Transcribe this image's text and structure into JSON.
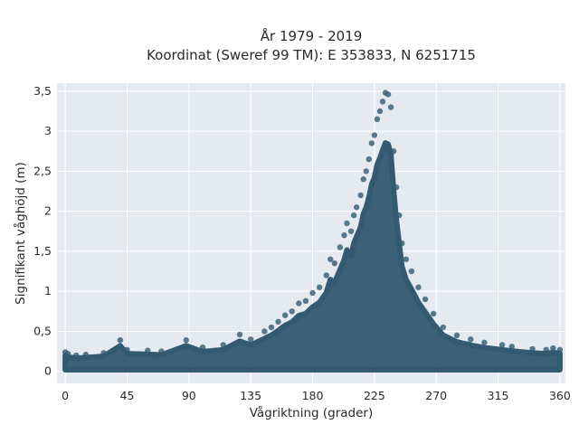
{
  "chart_data": {
    "type": "scatter",
    "title": "År 1979 - 2019",
    "subtitle": "Koordinat (Sweref 99 TM): E 353833, N 6251715",
    "xlabel": "Vågriktning (grader)",
    "ylabel": "Signifikant våghöjd (m)",
    "xlim": [
      -6,
      364
    ],
    "ylim": [
      -0.15,
      3.6
    ],
    "xticks": [
      0,
      45,
      90,
      135,
      180,
      225,
      270,
      315,
      360
    ],
    "xtick_labels": [
      "0",
      "45",
      "90",
      "135",
      "180",
      "225",
      "270",
      "315",
      "360"
    ],
    "yticks": [
      0,
      0.5,
      1,
      1.5,
      2,
      2.5,
      3,
      3.5
    ],
    "ytick_labels": [
      "0",
      "0,5",
      "1",
      "1,5",
      "2",
      "2,5",
      "3",
      "3,5"
    ],
    "grid": true,
    "marker_color": "#335a70",
    "background": "#e5e9f0",
    "points": [
      [
        0,
        0.24
      ],
      [
        2,
        0.22
      ],
      [
        8,
        0.2
      ],
      [
        15,
        0.21
      ],
      [
        28,
        0.23
      ],
      [
        40,
        0.39
      ],
      [
        45,
        0.27
      ],
      [
        60,
        0.26
      ],
      [
        70,
        0.25
      ],
      [
        88,
        0.39
      ],
      [
        100,
        0.3
      ],
      [
        115,
        0.33
      ],
      [
        127,
        0.46
      ],
      [
        135,
        0.4
      ],
      [
        145,
        0.5
      ],
      [
        150,
        0.55
      ],
      [
        155,
        0.62
      ],
      [
        160,
        0.7
      ],
      [
        165,
        0.75
      ],
      [
        170,
        0.85
      ],
      [
        175,
        0.88
      ],
      [
        180,
        0.98
      ],
      [
        185,
        1.05
      ],
      [
        190,
        1.2
      ],
      [
        193,
        1.4
      ],
      [
        196,
        1.35
      ],
      [
        200,
        1.55
      ],
      [
        203,
        1.7
      ],
      [
        205,
        1.85
      ],
      [
        208,
        1.75
      ],
      [
        210,
        1.95
      ],
      [
        212,
        2.05
      ],
      [
        215,
        2.2
      ],
      [
        217,
        2.4
      ],
      [
        219,
        2.5
      ],
      [
        221,
        2.65
      ],
      [
        223,
        2.85
      ],
      [
        225,
        2.95
      ],
      [
        227,
        3.15
      ],
      [
        229,
        3.25
      ],
      [
        231,
        3.37
      ],
      [
        233,
        3.48
      ],
      [
        235,
        3.46
      ],
      [
        237,
        3.3
      ],
      [
        239,
        2.75
      ],
      [
        241,
        2.3
      ],
      [
        243,
        1.95
      ],
      [
        245,
        1.6
      ],
      [
        248,
        1.4
      ],
      [
        252,
        1.25
      ],
      [
        257,
        1.05
      ],
      [
        262,
        0.9
      ],
      [
        268,
        0.72
      ],
      [
        275,
        0.55
      ],
      [
        285,
        0.45
      ],
      [
        295,
        0.4
      ],
      [
        305,
        0.36
      ],
      [
        318,
        0.33
      ],
      [
        325,
        0.31
      ],
      [
        340,
        0.28
      ],
      [
        350,
        0.27
      ],
      [
        355,
        0.29
      ],
      [
        360,
        0.27
      ]
    ]
  }
}
